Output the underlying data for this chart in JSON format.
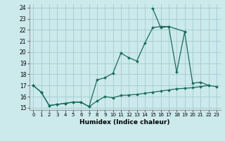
{
  "xlabel": "Humidex (Indice chaleur)",
  "bg_color": "#cce9ec",
  "grid_color": "#a8cfd4",
  "line_color": "#1a6b5a",
  "xlim": [
    -0.5,
    23.5
  ],
  "ylim": [
    14.8,
    24.3
  ],
  "xticks": [
    0,
    1,
    2,
    3,
    4,
    5,
    6,
    7,
    8,
    9,
    10,
    11,
    12,
    13,
    14,
    15,
    16,
    17,
    18,
    19,
    20,
    21,
    22,
    23
  ],
  "yticks": [
    15,
    16,
    17,
    18,
    19,
    20,
    21,
    22,
    23,
    24
  ],
  "line1_x": [
    0,
    1,
    2,
    3,
    4,
    5,
    6,
    7,
    8,
    9,
    10,
    11,
    12,
    13,
    14,
    15,
    16,
    17,
    18,
    19,
    20,
    21,
    22,
    23
  ],
  "line1_y": [
    17.0,
    16.4,
    15.2,
    15.3,
    15.4,
    15.5,
    15.5,
    15.1,
    15.6,
    16.0,
    15.9,
    16.1,
    16.15,
    16.2,
    16.3,
    16.4,
    16.5,
    16.6,
    16.7,
    16.75,
    16.8,
    16.9,
    17.0,
    16.9
  ],
  "line2_x": [
    0,
    1,
    2,
    3,
    4,
    5,
    6,
    7,
    8,
    9,
    10,
    11,
    12,
    13,
    14,
    15,
    16,
    17,
    18,
    19,
    20,
    21,
    22
  ],
  "line2_y": [
    17.0,
    16.4,
    15.2,
    15.3,
    15.4,
    15.5,
    15.5,
    15.1,
    17.5,
    17.7,
    18.1,
    19.9,
    19.5,
    19.2,
    20.8,
    22.2,
    22.3,
    22.3,
    18.2,
    21.8,
    17.2,
    17.3,
    17.0
  ],
  "line3_x": [
    15,
    16,
    17,
    19
  ],
  "line3_y": [
    23.9,
    22.2,
    22.3,
    21.85
  ]
}
